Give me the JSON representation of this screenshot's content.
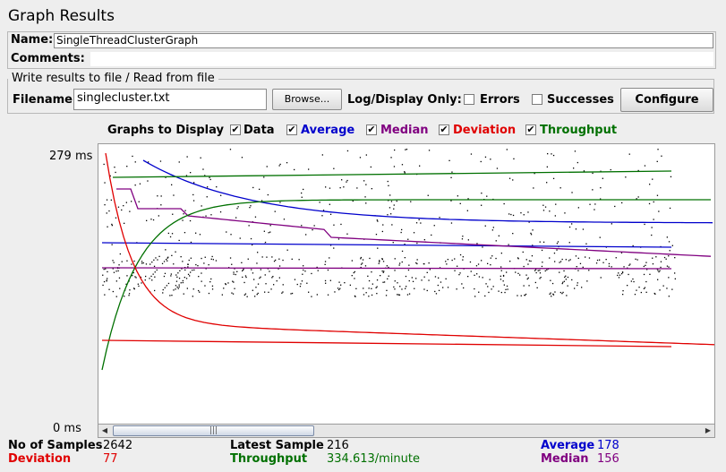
{
  "title": "Graph Results",
  "name": {
    "label": "Name:",
    "value": "SingleThreadClusterGraph"
  },
  "comments": {
    "label": "Comments:",
    "value": ""
  },
  "file": {
    "group_label": "Write results to file / Read from file",
    "filename_label": "Filename",
    "filename_value": "singlecluster.txt",
    "browse_label": "Browse...",
    "log_display_label": "Log/Display Only:",
    "errors_label": "Errors",
    "successes_label": "Successes",
    "configure_label": "Configure"
  },
  "graphs": {
    "label": "Graphs to Display",
    "toggles": [
      {
        "label": "Data",
        "checked": true,
        "color": "#000000"
      },
      {
        "label": "Average",
        "checked": true,
        "color": "#0000cc"
      },
      {
        "label": "Median",
        "checked": true,
        "color": "#800080"
      },
      {
        "label": "Deviation",
        "checked": true,
        "color": "#e00000"
      },
      {
        "label": "Throughput",
        "checked": true,
        "color": "#007000"
      }
    ]
  },
  "axis": {
    "max_label": "279 ms",
    "min_label": "0 ms"
  },
  "stats": {
    "samples_label": "No of Samples",
    "samples_value": "2642",
    "deviation_label": "Deviation",
    "deviation_value": "77",
    "latest_label": "Latest Sample",
    "latest_value": "216",
    "throughput_label": "Throughput",
    "throughput_value": "334.613/minute",
    "average_label": "Average",
    "average_value": "178",
    "median_label": "Median",
    "median_value": "156"
  },
  "chart_data": {
    "type": "line",
    "y_range_ms": [
      0,
      279
    ],
    "series": [
      {
        "name": "Data",
        "color": "#000000"
      },
      {
        "name": "Average",
        "color": "#0000cc"
      },
      {
        "name": "Median",
        "color": "#800080"
      },
      {
        "name": "Deviation",
        "color": "#e00000"
      },
      {
        "name": "Throughput",
        "color": "#007000"
      }
    ]
  },
  "colors": {
    "data": "#000000",
    "average": "#0000cc",
    "median": "#800080",
    "deviation": "#e00000",
    "throughput": "#007000"
  }
}
